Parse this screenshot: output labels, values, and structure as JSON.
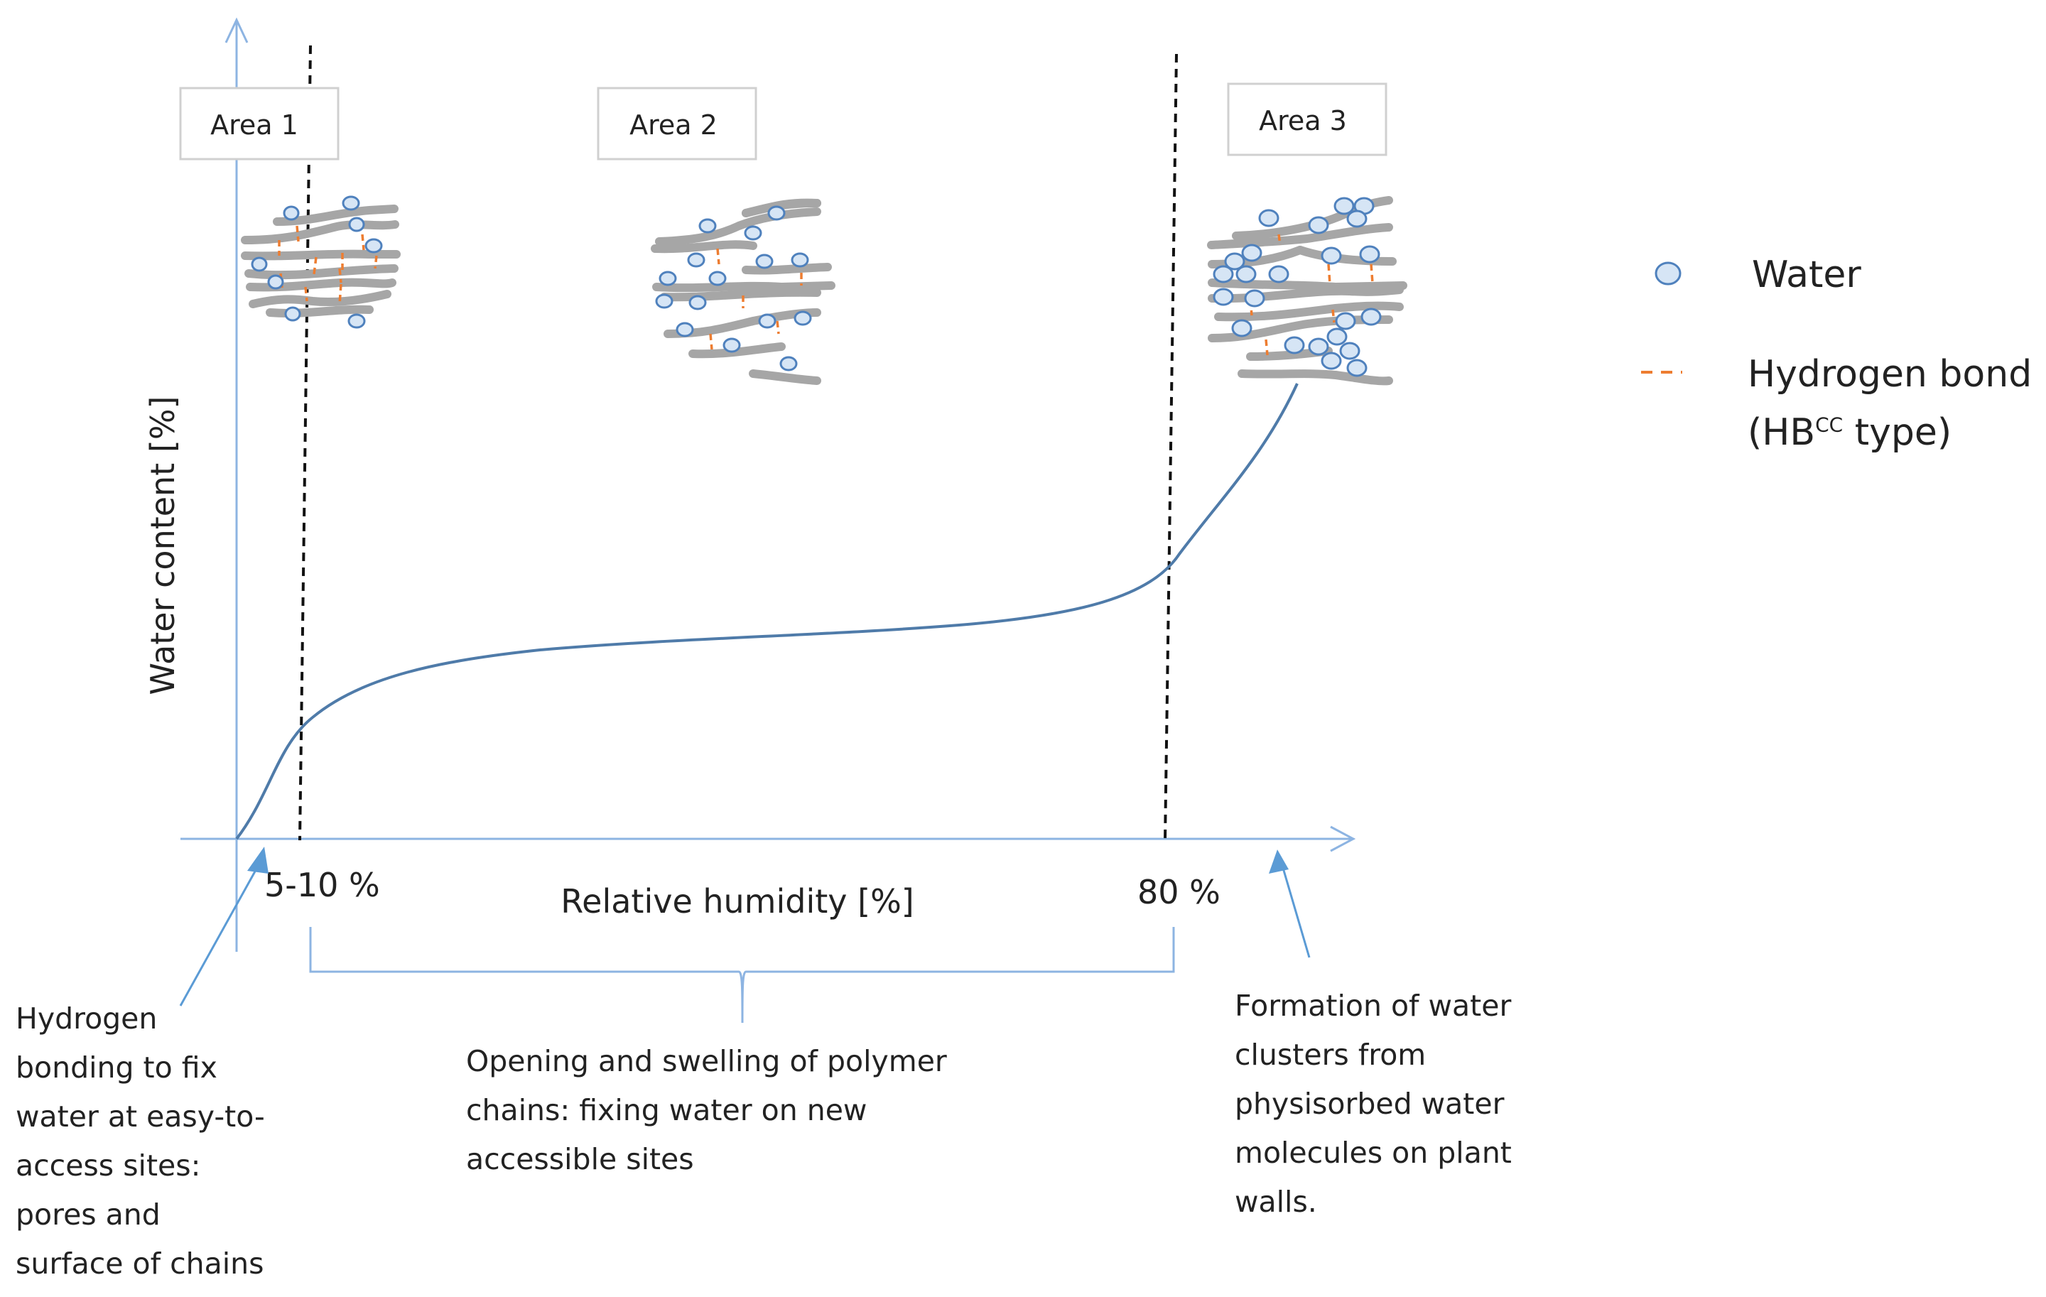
{
  "areas": [
    {
      "label": "Area 1"
    },
    {
      "label": "Area 2"
    },
    {
      "label": "Area 3"
    }
  ],
  "axes": {
    "y_label": "Water content [%]",
    "x_label": "Relative humidity [%]",
    "threshold_low_label": "5-10 %",
    "threshold_high_label": "80 %"
  },
  "legend": {
    "water_label": "Water",
    "hbond_label_line1": "Hydrogen bond",
    "hbond_label_prefix": "(HB",
    "hbond_label_sup": "CC",
    "hbond_label_suffix": " type)"
  },
  "annotations": {
    "left": "Hydrogen\nbonding to fix\nwater at easy-to-\naccess sites:\npores and\nsurface of chains",
    "middle": "Opening and swelling of polymer\nchains: fixing water on new\naccessible sites",
    "right": "Formation of water\nclusters from\nphysisorbed water\nmolecules on plant\nwalls."
  },
  "colors": {
    "axis": "#8db4e2",
    "curve": "#4f7ba9",
    "chain": "#a6a6a6",
    "water_fill": "#d6e5f5",
    "water_stroke": "#4f81bd",
    "hbond": "#ed7d31",
    "arrow": "#5b9bd5",
    "dashed_line": "#111111",
    "box_border": "#d0d0d0"
  }
}
